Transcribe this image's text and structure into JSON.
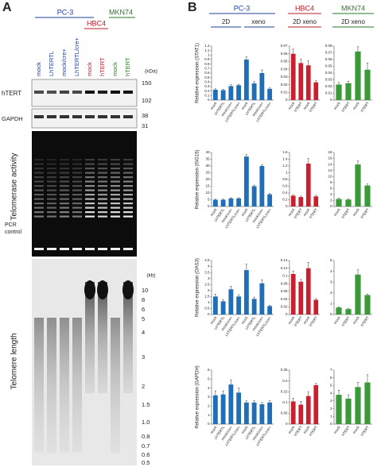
{
  "panel_a": {
    "label": "A",
    "groups": [
      "PC-3",
      "HBC4",
      "MKN74"
    ],
    "lanes": [
      "mock",
      "LhTERTL",
      "mock/cre+",
      "LhTERTL/cre+",
      "mock",
      "hTERT",
      "mock",
      "hTERT"
    ],
    "kda_unit": "(kDa)",
    "blot_htert": "hTERT",
    "kda_htert": [
      "150",
      "102"
    ],
    "blot_gapdh": "GAPDH",
    "kda_gapdh": [
      "38",
      "31"
    ],
    "telomerase": "Telomerase activity",
    "pcr_control": [
      "PCR",
      "control"
    ],
    "kb_unit": "(kb)",
    "kb_sizes": [
      "10",
      "8",
      "6",
      "5",
      "4",
      "3",
      "2",
      "1.5",
      "1.0",
      "0.8",
      "0.7",
      "0.6",
      "0.5"
    ],
    "telomere": "Telomere length"
  },
  "panel_b": {
    "label": "B",
    "pc3": "PC-3",
    "pc3_2d": "2D",
    "pc3_xeno": "xeno",
    "hbc4": "HBC4",
    "hbc4_sub": "2D xeno",
    "mkn74": "MKN74",
    "mkn74_sub": "2D xeno"
  },
  "chart_data": [
    {
      "type": "bar",
      "y_label": "Relative expression (STAT1)",
      "color": "#1f6fb8",
      "categories": [
        "mock",
        "LhTERTL",
        "mock/cre+",
        "LhTERTL/cre+",
        "mock",
        "LhTERTL",
        "mock/cre+",
        "LhTERTL/cre+"
      ],
      "values": [
        0.23,
        0.22,
        0.31,
        0.33,
        0.9,
        0.37,
        0.6,
        0.25
      ],
      "errors": [
        0.02,
        0.02,
        0.03,
        0.02,
        0.06,
        0.04,
        0.07,
        0.02
      ],
      "ylim": [
        0,
        1.2
      ],
      "yticks": [
        0,
        0.1,
        0.2,
        0.3,
        0.4,
        0.5,
        0.6,
        0.7,
        0.8,
        0.9,
        1,
        1.1,
        1.2
      ]
    },
    {
      "type": "bar",
      "color": "#c8202f",
      "categories": [
        "mock",
        "hTERT",
        "mock",
        "hTERT"
      ],
      "values": [
        0.06,
        0.048,
        0.045,
        0.023
      ],
      "errors": [
        0.006,
        0.005,
        0.006,
        0.002
      ],
      "ylim": [
        0,
        0.07
      ],
      "yticks": [
        0,
        0.01,
        0.02,
        0.03,
        0.04,
        0.05,
        0.06,
        0.07
      ]
    },
    {
      "type": "bar",
      "color": "#3a9a3a",
      "categories": [
        "mock",
        "hTERT",
        "mock",
        "hTERT"
      ],
      "values": [
        0.023,
        0.025,
        0.072,
        0.045
      ],
      "errors": [
        0.003,
        0.003,
        0.007,
        0.01
      ],
      "ylim": [
        0,
        0.08
      ],
      "yticks": [
        0,
        0.01,
        0.02,
        0.03,
        0.04,
        0.05,
        0.06,
        0.07,
        0.08
      ]
    },
    {
      "type": "bar",
      "y_label": "Relative expression (ISG15)",
      "color": "#1f6fb8",
      "categories": [
        "mock",
        "LhTERTL",
        "mock/cre+",
        "LhTERTL/cre+",
        "mock",
        "LhTERTL",
        "mock/cre+",
        "LhTERTL/cre+"
      ],
      "values": [
        5,
        5,
        6,
        6,
        37,
        15,
        30,
        9
      ],
      "errors": [
        0.4,
        0.4,
        0.5,
        0.5,
        1.5,
        0.8,
        1,
        0.7
      ],
      "ylim": [
        0,
        40
      ],
      "yticks": [
        0,
        5,
        10,
        15,
        20,
        25,
        30,
        35,
        40
      ]
    },
    {
      "type": "bar",
      "color": "#c8202f",
      "categories": [
        "mock",
        "hTERT",
        "mock",
        "hTERT"
      ],
      "values": [
        0.32,
        0.28,
        1.27,
        0.3
      ],
      "errors": [
        0.03,
        0.03,
        0.15,
        0.03
      ],
      "ylim": [
        0,
        1.6
      ],
      "yticks": [
        0,
        0.2,
        0.4,
        0.6,
        0.8,
        1,
        1.2,
        1.4,
        1.6
      ]
    },
    {
      "type": "bar",
      "color": "#3a9a3a",
      "categories": [
        "mock",
        "hTERT",
        "mock",
        "hTERT"
      ],
      "values": [
        2.5,
        2.3,
        14,
        7
      ],
      "errors": [
        0.3,
        0.3,
        1.2,
        0.5
      ],
      "ylim": [
        0,
        18
      ],
      "yticks": [
        0,
        2,
        4,
        6,
        8,
        10,
        12,
        14,
        16,
        18
      ]
    },
    {
      "type": "bar",
      "y_label": "Relative expression (OAS3)",
      "color": "#1f6fb8",
      "categories": [
        "mock",
        "LhTERTL",
        "mock/cre+",
        "LhTERTL/cre+",
        "mock",
        "LhTERTL",
        "mock/cre+",
        "LhTERTL/cre+"
      ],
      "values": [
        1.5,
        1.1,
        2.1,
        1.5,
        3.7,
        1.3,
        2.6,
        0.7
      ],
      "errors": [
        0.2,
        0.15,
        0.25,
        0.15,
        0.5,
        0.15,
        0.3,
        0.08
      ],
      "ylim": [
        0,
        4.5
      ],
      "yticks": [
        0,
        0.5,
        1,
        1.5,
        2,
        2.5,
        3,
        3.5,
        4,
        4.5
      ]
    },
    {
      "type": "bar",
      "color": "#c8202f",
      "categories": [
        "mock",
        "hTERT",
        "mock",
        "hTERT"
      ],
      "values": [
        0.105,
        0.085,
        0.12,
        0.038
      ],
      "errors": [
        0.008,
        0.006,
        0.015,
        0.003
      ],
      "ylim": [
        0,
        0.14
      ],
      "yticks": [
        0,
        0.02,
        0.04,
        0.06,
        0.08,
        0.1,
        0.12,
        0.14
      ]
    },
    {
      "type": "bar",
      "color": "#3a9a3a",
      "categories": [
        "mock",
        "hTERT",
        "mock",
        "hTERT"
      ],
      "values": [
        0.65,
        0.5,
        3.7,
        1.8
      ],
      "errors": [
        0.06,
        0.05,
        0.45,
        0.1
      ],
      "ylim": [
        0,
        5
      ],
      "yticks": [
        0,
        1,
        2,
        3,
        4,
        5
      ]
    },
    {
      "type": "bar",
      "y_label": "Relative expression (GAPDH)",
      "color": "#1f6fb8",
      "categories": [
        "mock",
        "LhTERTL",
        "mock/cre+",
        "LhTERTL/cre+",
        "mock",
        "LhTERTL",
        "mock/cre+",
        "LhTERTL/cre+"
      ],
      "values": [
        3.2,
        3.3,
        4.4,
        3.5,
        2.4,
        2.4,
        2.2,
        2.4
      ],
      "errors": [
        0.5,
        0.4,
        0.5,
        0.5,
        0.2,
        0.2,
        0.2,
        0.2
      ],
      "ylim": [
        0,
        6
      ],
      "yticks": [
        0,
        1,
        2,
        3,
        4,
        5,
        6
      ]
    },
    {
      "type": "bar",
      "color": "#c8202f",
      "categories": [
        "mock",
        "hTERT",
        "mock",
        "hTERT"
      ],
      "values": [
        0.105,
        0.09,
        0.13,
        0.18
      ],
      "errors": [
        0.015,
        0.015,
        0.02,
        0.008
      ],
      "ylim": [
        0,
        0.25
      ],
      "yticks": [
        0,
        0.05,
        0.1,
        0.15,
        0.2,
        0.25
      ]
    },
    {
      "type": "bar",
      "color": "#3a9a3a",
      "categories": [
        "mock",
        "hTERT",
        "mock",
        "hTERT"
      ],
      "values": [
        3.8,
        3.3,
        4.8,
        5.4
      ],
      "errors": [
        0.6,
        0.5,
        0.6,
        1
      ],
      "ylim": [
        0,
        7
      ],
      "yticks": [
        0,
        1,
        2,
        3,
        4,
        5,
        6,
        7
      ]
    }
  ]
}
